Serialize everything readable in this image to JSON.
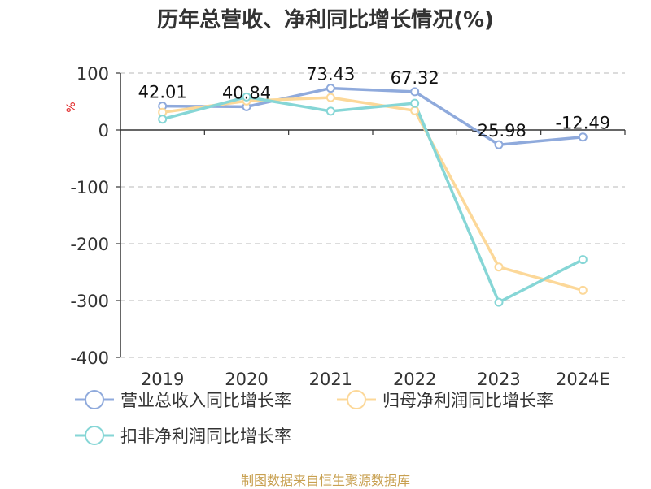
{
  "chart_data": {
    "type": "line",
    "title": "历年总营收、净利同比增长情况(%)",
    "ylabel": "%",
    "categories": [
      "2019",
      "2020",
      "2021",
      "2022",
      "2023",
      "2024E"
    ],
    "ylim": [
      -400,
      100
    ],
    "yticks": [
      100,
      0,
      -100,
      -200,
      -300,
      -400
    ],
    "grid": true,
    "legend_position": "bottom",
    "series": [
      {
        "name": "营业总收入同比增长率",
        "color": "#8faadc",
        "values": [
          42.01,
          40.84,
          73.43,
          67.32,
          -25.98,
          -12.49
        ],
        "labels": [
          "42.01",
          "40.84",
          "73.43",
          "67.32",
          "-25.98",
          "-12.49"
        ]
      },
      {
        "name": "归母净利润同比增长率",
        "color": "#fcd899",
        "values": [
          31,
          51,
          57,
          34,
          -241,
          -282
        ]
      },
      {
        "name": "扣非净利润同比增长率",
        "color": "#86d6d6",
        "values": [
          19,
          58,
          33,
          47,
          -303,
          -228
        ]
      }
    ]
  },
  "footer": "制图数据来自恒生聚源数据库"
}
